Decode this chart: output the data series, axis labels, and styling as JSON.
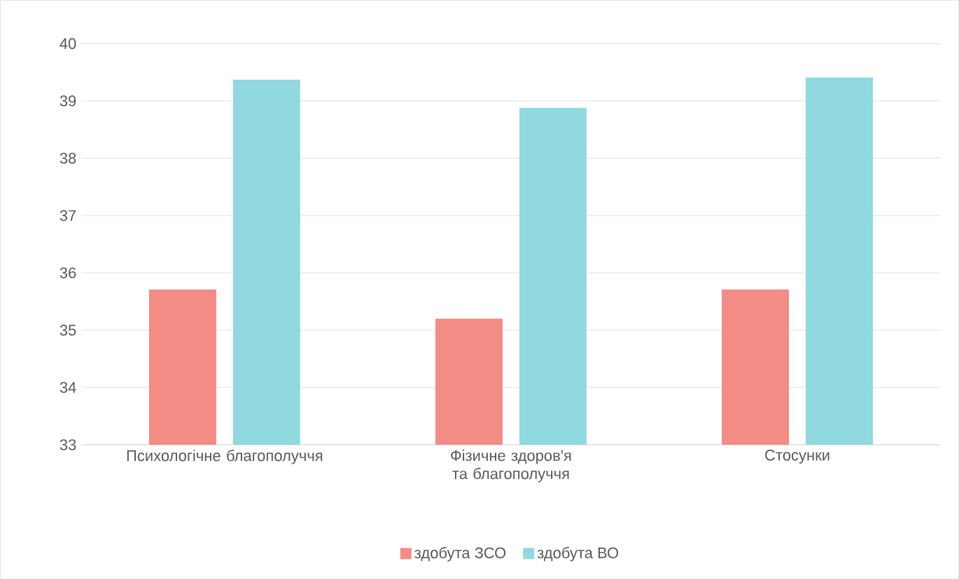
{
  "chart_data": {
    "type": "bar",
    "categories": [
      "Психологічне благополуччя",
      "Фізичне здоров'я та благополуччя",
      "Стосунки"
    ],
    "series": [
      {
        "name": "здобута ЗСО",
        "color": "#f28c84",
        "values": [
          35.71,
          35.2,
          35.71
        ]
      },
      {
        "name": "здобута ВО",
        "color": "#90d9de",
        "values": [
          39.37,
          38.88,
          39.41
        ]
      }
    ],
    "ylim": [
      33,
      40
    ],
    "yticks": [
      33,
      34,
      35,
      36,
      37,
      38,
      39,
      40
    ],
    "grid": "y",
    "legend": "bottom"
  }
}
